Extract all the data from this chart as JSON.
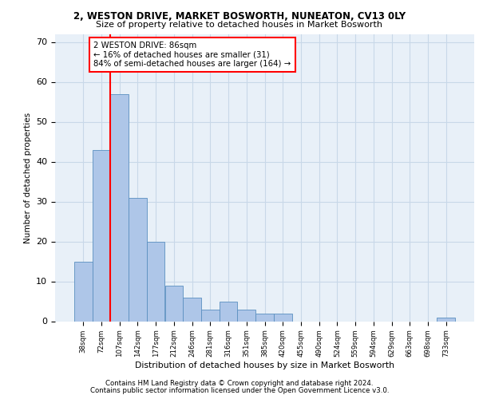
{
  "title1": "2, WESTON DRIVE, MARKET BOSWORTH, NUNEATON, CV13 0LY",
  "title2": "Size of property relative to detached houses in Market Bosworth",
  "xlabel": "Distribution of detached houses by size in Market Bosworth",
  "ylabel": "Number of detached properties",
  "bar_labels": [
    "38sqm",
    "72sqm",
    "107sqm",
    "142sqm",
    "177sqm",
    "212sqm",
    "246sqm",
    "281sqm",
    "316sqm",
    "351sqm",
    "385sqm",
    "420sqm",
    "455sqm",
    "490sqm",
    "524sqm",
    "559sqm",
    "594sqm",
    "629sqm",
    "663sqm",
    "698sqm",
    "733sqm"
  ],
  "bar_values": [
    15,
    43,
    57,
    31,
    20,
    9,
    6,
    3,
    5,
    3,
    2,
    2,
    0,
    0,
    0,
    0,
    0,
    0,
    0,
    0,
    1
  ],
  "bar_color": "#aec6e8",
  "bar_edge_color": "#5a8fc0",
  "grid_color": "#c8d8e8",
  "bg_color": "#e8f0f8",
  "annotation_text": "2 WESTON DRIVE: 86sqm\n← 16% of detached houses are smaller (31)\n84% of semi-detached houses are larger (164) →",
  "ylim": [
    0,
    72
  ],
  "yticks": [
    0,
    10,
    20,
    30,
    40,
    50,
    60,
    70
  ],
  "red_line_x": 1.5,
  "footer1": "Contains HM Land Registry data © Crown copyright and database right 2024.",
  "footer2": "Contains public sector information licensed under the Open Government Licence v3.0."
}
